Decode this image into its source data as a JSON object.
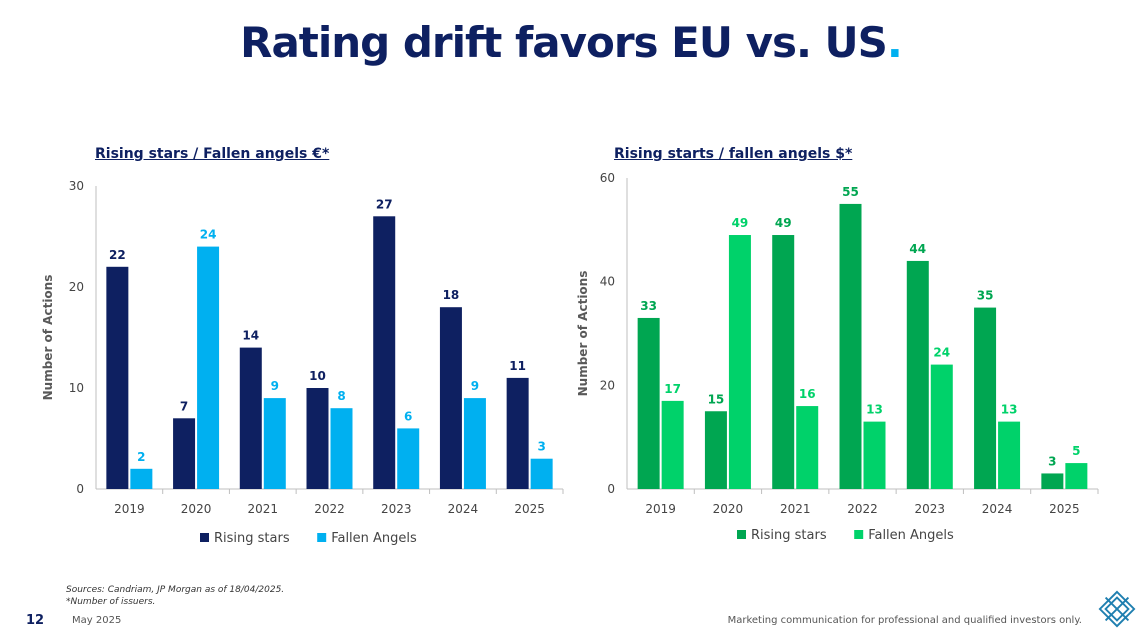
{
  "slide": {
    "title": "Rating drift favors EU vs. US",
    "title_dot": ".",
    "page_number": "12",
    "date": "May 2025",
    "sources_line1": "Sources: Candriam, JP Morgan as of 18/04/2025.",
    "sources_line2": "*Number of issuers.",
    "disclaimer": "Marketing communication for professional and qualified investors only.",
    "accent_color": "#00b0f0",
    "title_color": "#0e2061"
  },
  "chart_data": [
    {
      "type": "bar",
      "title": "Rising stars / Fallen angels €*",
      "ylabel": "Number of Actions",
      "xlabel": "",
      "categories": [
        "2019",
        "2020",
        "2021",
        "2022",
        "2023",
        "2024",
        "2025"
      ],
      "ylim": [
        0,
        30
      ],
      "yticks": [
        "0",
        "10",
        "20",
        "30"
      ],
      "grid": false,
      "legend_position": "bottom",
      "series": [
        {
          "name": "Rising stars",
          "color": "#0e2061",
          "values": [
            22,
            7,
            14,
            10,
            27,
            18,
            11
          ]
        },
        {
          "name": "Fallen Angels",
          "color": "#00b0f0",
          "values": [
            2,
            24,
            9,
            8,
            6,
            9,
            3
          ]
        }
      ]
    },
    {
      "type": "bar",
      "title": "Rising starts / fallen angels $*",
      "ylabel": "Number of Actions",
      "xlabel": "",
      "categories": [
        "2019",
        "2020",
        "2021",
        "2022",
        "2023",
        "2024",
        "2025"
      ],
      "ylim": [
        0,
        60
      ],
      "yticks": [
        "0",
        "20",
        "40",
        "60"
      ],
      "grid": false,
      "legend_position": "bottom",
      "series": [
        {
          "name": "Rising stars",
          "color": "#00a651",
          "values": [
            33,
            15,
            49,
            55,
            44,
            35,
            3
          ]
        },
        {
          "name": "Fallen Angels",
          "color": "#00d26a",
          "values": [
            17,
            49,
            16,
            13,
            24,
            13,
            5
          ]
        }
      ]
    }
  ]
}
